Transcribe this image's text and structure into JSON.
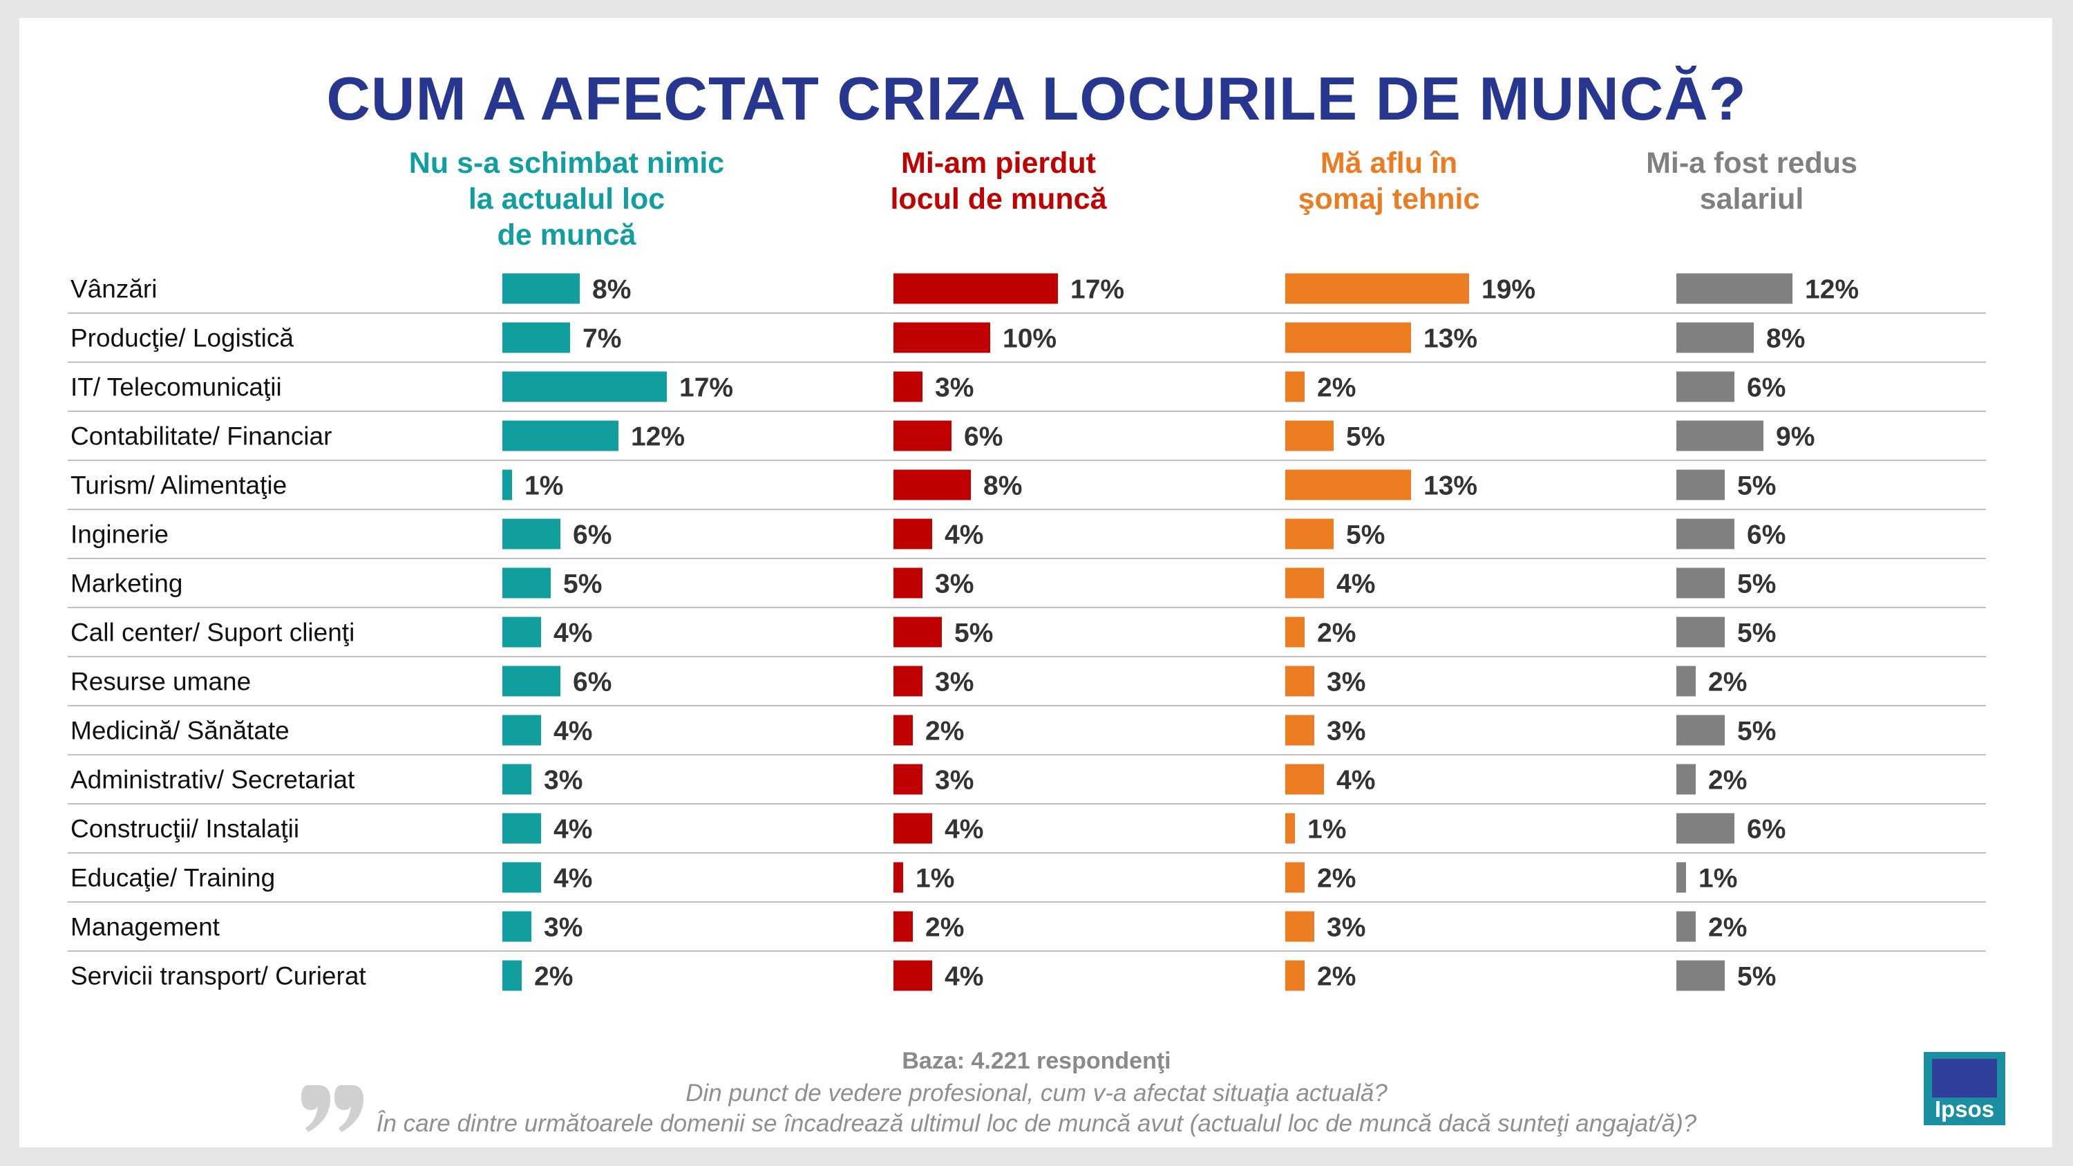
{
  "chart_data": {
    "type": "bar",
    "title": "CUM A AFECTAT CRIZA LOCURILE DE MUNCĂ?",
    "categories": [
      "Vânzări",
      "Producţie/ Logistică",
      "IT/ Telecomunicaţii",
      "Contabilitate/ Financiar",
      "Turism/ Alimentaţie",
      "Inginerie",
      "Marketing",
      "Call center/ Suport clienţi",
      "Resurse umane",
      "Medicină/ Sănătate",
      "Administrativ/ Secretariat",
      "Construcţii/ Instalaţii",
      "Educaţie/ Training",
      "Management",
      "Servicii transport/ Curierat"
    ],
    "series": [
      {
        "name": "Nu s-a schimbat nimic la actualul loc de muncă",
        "name_lines": [
          "Nu s-a schimbat nimic",
          "la actualul loc",
          "de muncă"
        ],
        "color": "#109e9e",
        "values": [
          8,
          7,
          17,
          12,
          1,
          6,
          5,
          4,
          6,
          4,
          3,
          4,
          4,
          3,
          2
        ]
      },
      {
        "name": "Mi-am pierdut locul de muncă",
        "name_lines": [
          "Mi-am pierdut",
          "locul de muncă"
        ],
        "color": "#c00000",
        "values": [
          17,
          10,
          3,
          6,
          8,
          4,
          3,
          5,
          3,
          2,
          3,
          4,
          1,
          2,
          4
        ]
      },
      {
        "name": "Mă aflu în şomaj tehnic",
        "name_lines": [
          "Mă aflu în",
          "şomaj tehnic"
        ],
        "color": "#ec7c22",
        "values": [
          19,
          13,
          2,
          5,
          13,
          5,
          4,
          2,
          3,
          3,
          4,
          1,
          2,
          3,
          2
        ]
      },
      {
        "name": "Mi-a fost redus salariul",
        "name_lines": [
          "Mi-a fost redus",
          "salariul"
        ],
        "color": "#808080",
        "values": [
          12,
          8,
          6,
          9,
          5,
          6,
          5,
          5,
          2,
          5,
          2,
          6,
          1,
          2,
          5
        ]
      }
    ],
    "value_suffix": "%",
    "gridlines": "horizontal separators between rows"
  },
  "footer": {
    "base": "Baza: 4.221 respondenţi",
    "question1": "Din punct de vedere profesional, cum v-a afectat situaţia actuală?",
    "question2": "În care dintre următoarele domenii se încadrează ultimul loc de muncă avut (actualul loc de muncă dacă sunteţi angajat/ă)?"
  },
  "logo": {
    "text": "Ipsos"
  },
  "colors": {
    "title": "#27368f",
    "separator": "#bfbfbf"
  },
  "icons": {
    "quote": "quote-icon"
  }
}
